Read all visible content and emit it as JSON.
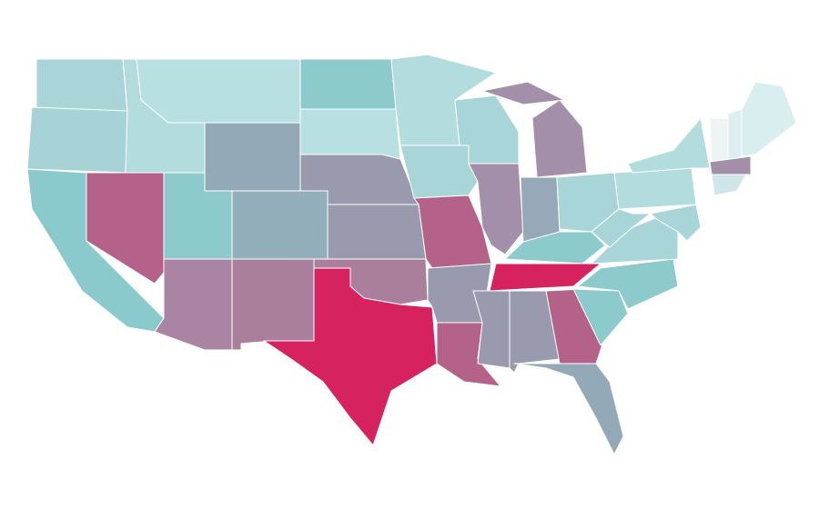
{
  "map": {
    "regions": [
      {
        "color": "#a9d5d8"
      },
      {
        "color": "#a8d3d6"
      },
      {
        "color": "#8ac9cc"
      },
      {
        "color": "#b5628b"
      },
      {
        "color": "#b3dcdf"
      },
      {
        "color": "#b8dfe1"
      },
      {
        "color": "#93a9b8"
      },
      {
        "color": "#8ccacc"
      },
      {
        "color": "#a985a3"
      },
      {
        "color": "#92aebb"
      },
      {
        "color": "#a97f9b"
      },
      {
        "color": "#8ccacc"
      },
      {
        "color": "#b8dfe1"
      },
      {
        "color": "#9a9aae"
      },
      {
        "color": "#9a9aae"
      },
      {
        "color": "#a97f9b"
      },
      {
        "color": "#d6225f"
      },
      {
        "color": "#b3dcdf"
      },
      {
        "color": "#a8d5d8"
      },
      {
        "color": "#b5628b"
      },
      {
        "color": "#9a9aae"
      },
      {
        "color": "#b5628b"
      },
      {
        "color": "#a8d5d8"
      },
      {
        "color": "#a38fa9"
      },
      {
        "color": "#a38fa9"
      },
      {
        "color": "#a38fa9"
      },
      {
        "color": "#97a8b8"
      },
      {
        "color": "#a8d5d8"
      },
      {
        "color": "#8ccacc"
      },
      {
        "color": "#d6225f"
      },
      {
        "color": "#9a9aae"
      },
      {
        "color": "#9a9aae"
      },
      {
        "color": "#b5628b"
      },
      {
        "color": "#93a9b8"
      },
      {
        "color": "#8ccacc"
      },
      {
        "color": "#8ccacc"
      },
      {
        "color": "#a8d5d8"
      },
      {
        "color": "#a8d5d8"
      },
      {
        "color": "#b3dcdf"
      },
      {
        "color": "#b3dcdf"
      },
      {
        "color": "#a8d5d8"
      },
      {
        "color": "#eef3f4"
      },
      {
        "color": "#dceeef"
      },
      {
        "color": "#d8eeef"
      },
      {
        "color": "#a38fa9"
      },
      {
        "color": "#cfe7e9"
      }
    ]
  }
}
